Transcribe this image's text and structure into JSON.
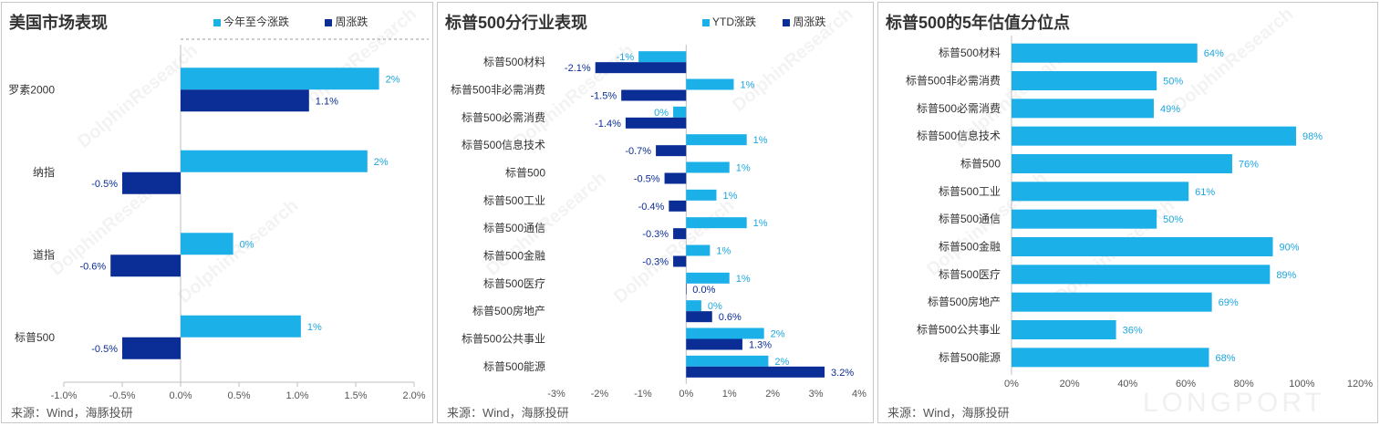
{
  "colors": {
    "ytd": "#1cb0e8",
    "weekly": "#0b2d96",
    "label_ytd": "#1ca6e0",
    "label_weekly": "#0b2d96",
    "axis": "#bfbfbf"
  },
  "watermarks": {
    "brand": "DolphinResearch",
    "brand_cn": "海豚投研",
    "logo": "LONGPORT"
  },
  "panels": {
    "us_market": {
      "title": "美国市场表现",
      "source": "来源：Wind，海豚投研",
      "legend": {
        "ytd": "今年至今涨跌",
        "weekly": "周涨跌"
      }
    },
    "sp500_sectors": {
      "title": "标普500分行业表现",
      "source": "来源：Wind，海豚投研",
      "legend": {
        "ytd": "YTD涨跌",
        "weekly": "周涨跌"
      }
    },
    "valuation": {
      "title": "标普500的5年估值分位点",
      "source": "来源：Wind，海豚投研"
    }
  },
  "chart_data": [
    {
      "type": "bar",
      "orientation": "horizontal",
      "title": "美国市场表现",
      "categories": [
        "罗素2000",
        "纳指",
        "道指",
        "标普500"
      ],
      "series": [
        {
          "name": "今年至今涨跌",
          "values": [
            1.7,
            1.6,
            0.45,
            1.03
          ],
          "labels": [
            "2%",
            "2%",
            "0%",
            "1%"
          ]
        },
        {
          "name": "周涨跌",
          "values": [
            1.1,
            -0.5,
            -0.6,
            -0.5
          ],
          "labels": [
            "1.1%",
            "-0.5%",
            "-0.6%",
            "-0.5%"
          ]
        }
      ],
      "xlim": [
        -1.0,
        2.0
      ],
      "xticks": [
        "-1.0%",
        "-0.5%",
        "0.0%",
        "0.5%",
        "1.0%",
        "1.5%",
        "2.0%"
      ],
      "legend_position": "top"
    },
    {
      "type": "bar",
      "orientation": "horizontal",
      "title": "标普500分行业表现",
      "categories": [
        "标普500材料",
        "标普500非必需消费",
        "标普500必需消费",
        "标普500信息技术",
        "标普500",
        "标普500工业",
        "标普500通信",
        "标普500金融",
        "标普500医疗",
        "标普500房地产",
        "标普500公共事业",
        "标普500能源"
      ],
      "series": [
        {
          "name": "YTD涨跌",
          "values": [
            -1.1,
            1.1,
            -0.3,
            1.4,
            1.0,
            0.7,
            1.4,
            0.55,
            1.0,
            0.35,
            1.8,
            1.9
          ],
          "labels": [
            "-1%",
            "1%",
            "0%",
            "1%",
            "1%",
            "1%",
            "1%",
            "1%",
            "1%",
            "0%",
            "2%",
            "2%"
          ]
        },
        {
          "name": "周涨跌",
          "values": [
            -2.1,
            -1.5,
            -1.4,
            -0.7,
            -0.5,
            -0.4,
            -0.3,
            -0.3,
            0.0,
            0.6,
            1.3,
            3.2
          ],
          "labels": [
            "-2.1%",
            "-1.5%",
            "-1.4%",
            "-0.7%",
            "-0.5%",
            "-0.4%",
            "-0.3%",
            "-0.3%",
            "0.0%",
            "0.6%",
            "1.3%",
            "3.2%"
          ]
        }
      ],
      "xlim": [
        -3,
        4
      ],
      "xticks": [
        "-3%",
        "-2%",
        "-1%",
        "0%",
        "1%",
        "2%",
        "3%",
        "4%"
      ],
      "legend_position": "top"
    },
    {
      "type": "bar",
      "orientation": "horizontal",
      "title": "标普500的5年估值分位点",
      "categories": [
        "标普500材料",
        "标普500非必需消费",
        "标普500必需消费",
        "标普500信息技术",
        "标普500",
        "标普500工业",
        "标普500通信",
        "标普500金融",
        "标普500医疗",
        "标普500房地产",
        "标普500公共事业",
        "标普500能源"
      ],
      "series": [
        {
          "values": [
            64,
            50,
            49,
            98,
            76,
            61,
            50,
            90,
            89,
            69,
            36,
            68
          ],
          "labels": [
            "64%",
            "50%",
            "49%",
            "98%",
            "76%",
            "61%",
            "50%",
            "90%",
            "89%",
            "69%",
            "36%",
            "68%"
          ]
        }
      ],
      "xlim": [
        0,
        120
      ],
      "xticks": [
        "0%",
        "20%",
        "40%",
        "60%",
        "80%",
        "100%",
        "120%"
      ]
    }
  ]
}
